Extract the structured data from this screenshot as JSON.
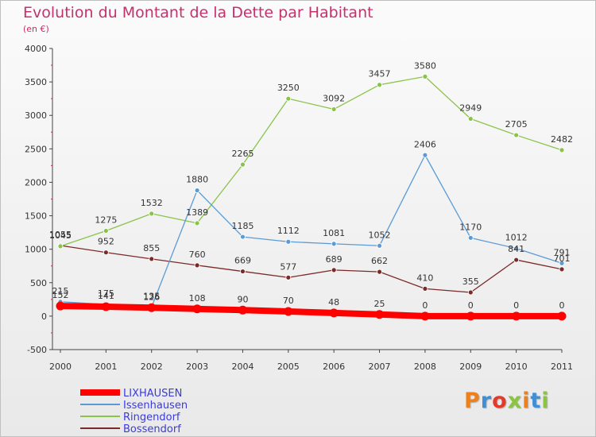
{
  "title": "Evolution du Montant de la Dette par Habitant",
  "subtitle": "(en €)",
  "logo": {
    "text": "Proxiti",
    "colors": [
      "#f07f1a",
      "#3f8fd6",
      "#e23b2a",
      "#8bc440",
      "#f07f1a",
      "#3f8fd6",
      "#8bc440"
    ]
  },
  "chart_data": {
    "type": "line",
    "title": "Evolution du Montant de la Dette par Habitant",
    "subtitle": "(en €)",
    "xlabel": "",
    "ylabel": "",
    "x": [
      "2000",
      "2001",
      "2002",
      "2003",
      "2004",
      "2005",
      "2006",
      "2007",
      "2008",
      "2009",
      "2010",
      "2011"
    ],
    "ylim": [
      -500,
      4000
    ],
    "yticks": [
      -500,
      0,
      500,
      1000,
      1500,
      2000,
      2500,
      3000,
      3500,
      4000
    ],
    "grid": false,
    "legend_position": "bottom-left",
    "series": [
      {
        "name": "LIXHAUSEN",
        "color": "#ff0000",
        "bold": true,
        "values": [
          152,
          141,
          126,
          108,
          90,
          70,
          48,
          25,
          0,
          0,
          0,
          0
        ],
        "labels": [
          "152",
          "141",
          "126",
          "108",
          "90",
          "70",
          "48",
          "25",
          "0",
          "0",
          "0",
          "0"
        ]
      },
      {
        "name": "Issenhausen",
        "color": "#5b9bd5",
        "values": [
          215,
          175,
          135,
          1880,
          1185,
          1112,
          1081,
          1052,
          2406,
          1170,
          1012,
          791
        ],
        "labels": [
          "215",
          "175",
          "135",
          "1880",
          "1185",
          "1112",
          "1081",
          "1052",
          "2406",
          "1170",
          "1012",
          "791"
        ]
      },
      {
        "name": "Ringendorf",
        "color": "#8bc34a",
        "values": [
          1045,
          1275,
          1532,
          1389,
          2265,
          3250,
          3092,
          3457,
          3580,
          2949,
          2705,
          2482
        ],
        "labels": [
          "1045",
          "1275",
          "1532",
          "1389",
          "2265",
          "3250",
          "3092",
          "3457",
          "3580",
          "2949",
          "2705",
          "2482"
        ]
      },
      {
        "name": "Bossendorf",
        "color": "#7b2a2a",
        "values": [
          1055,
          952,
          855,
          760,
          669,
          577,
          689,
          662,
          410,
          355,
          841,
          701
        ],
        "labels": [
          "1055",
          "952",
          "855",
          "760",
          "669",
          "577",
          "689",
          "662",
          "410",
          "355",
          "841",
          "701"
        ]
      }
    ]
  }
}
